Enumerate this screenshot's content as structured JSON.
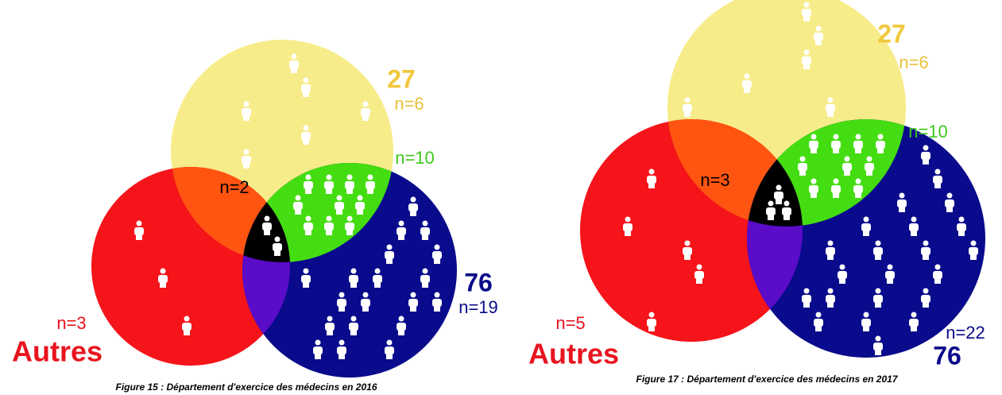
{
  "figures": [
    {
      "set_labels": {
        "yellow": "27",
        "blue": "76",
        "red": "Autres"
      },
      "regions": [
        {
          "label": "n=6",
          "count": 6
        },
        {
          "label": "n=10",
          "count": 10
        },
        {
          "label": "n=2",
          "count": 2
        },
        {
          "label": "n=19",
          "count": 19
        },
        {
          "label": "n=3",
          "count": 3
        }
      ],
      "caption": "Figure 15 : Département d'exercice des médecins en 2016"
    },
    {
      "set_labels": {
        "yellow": "27",
        "blue": "76",
        "red": "Autres"
      },
      "regions": [
        {
          "label": "n=6",
          "count": 6
        },
        {
          "label": "n=10",
          "count": 10
        },
        {
          "label": "n=3",
          "count": 3
        },
        {
          "label": "n=22",
          "count": 22
        },
        {
          "label": "n=5",
          "count": 5
        }
      ],
      "caption": "Figure 17 : Département d'exercice des médecins en 2017"
    }
  ]
}
